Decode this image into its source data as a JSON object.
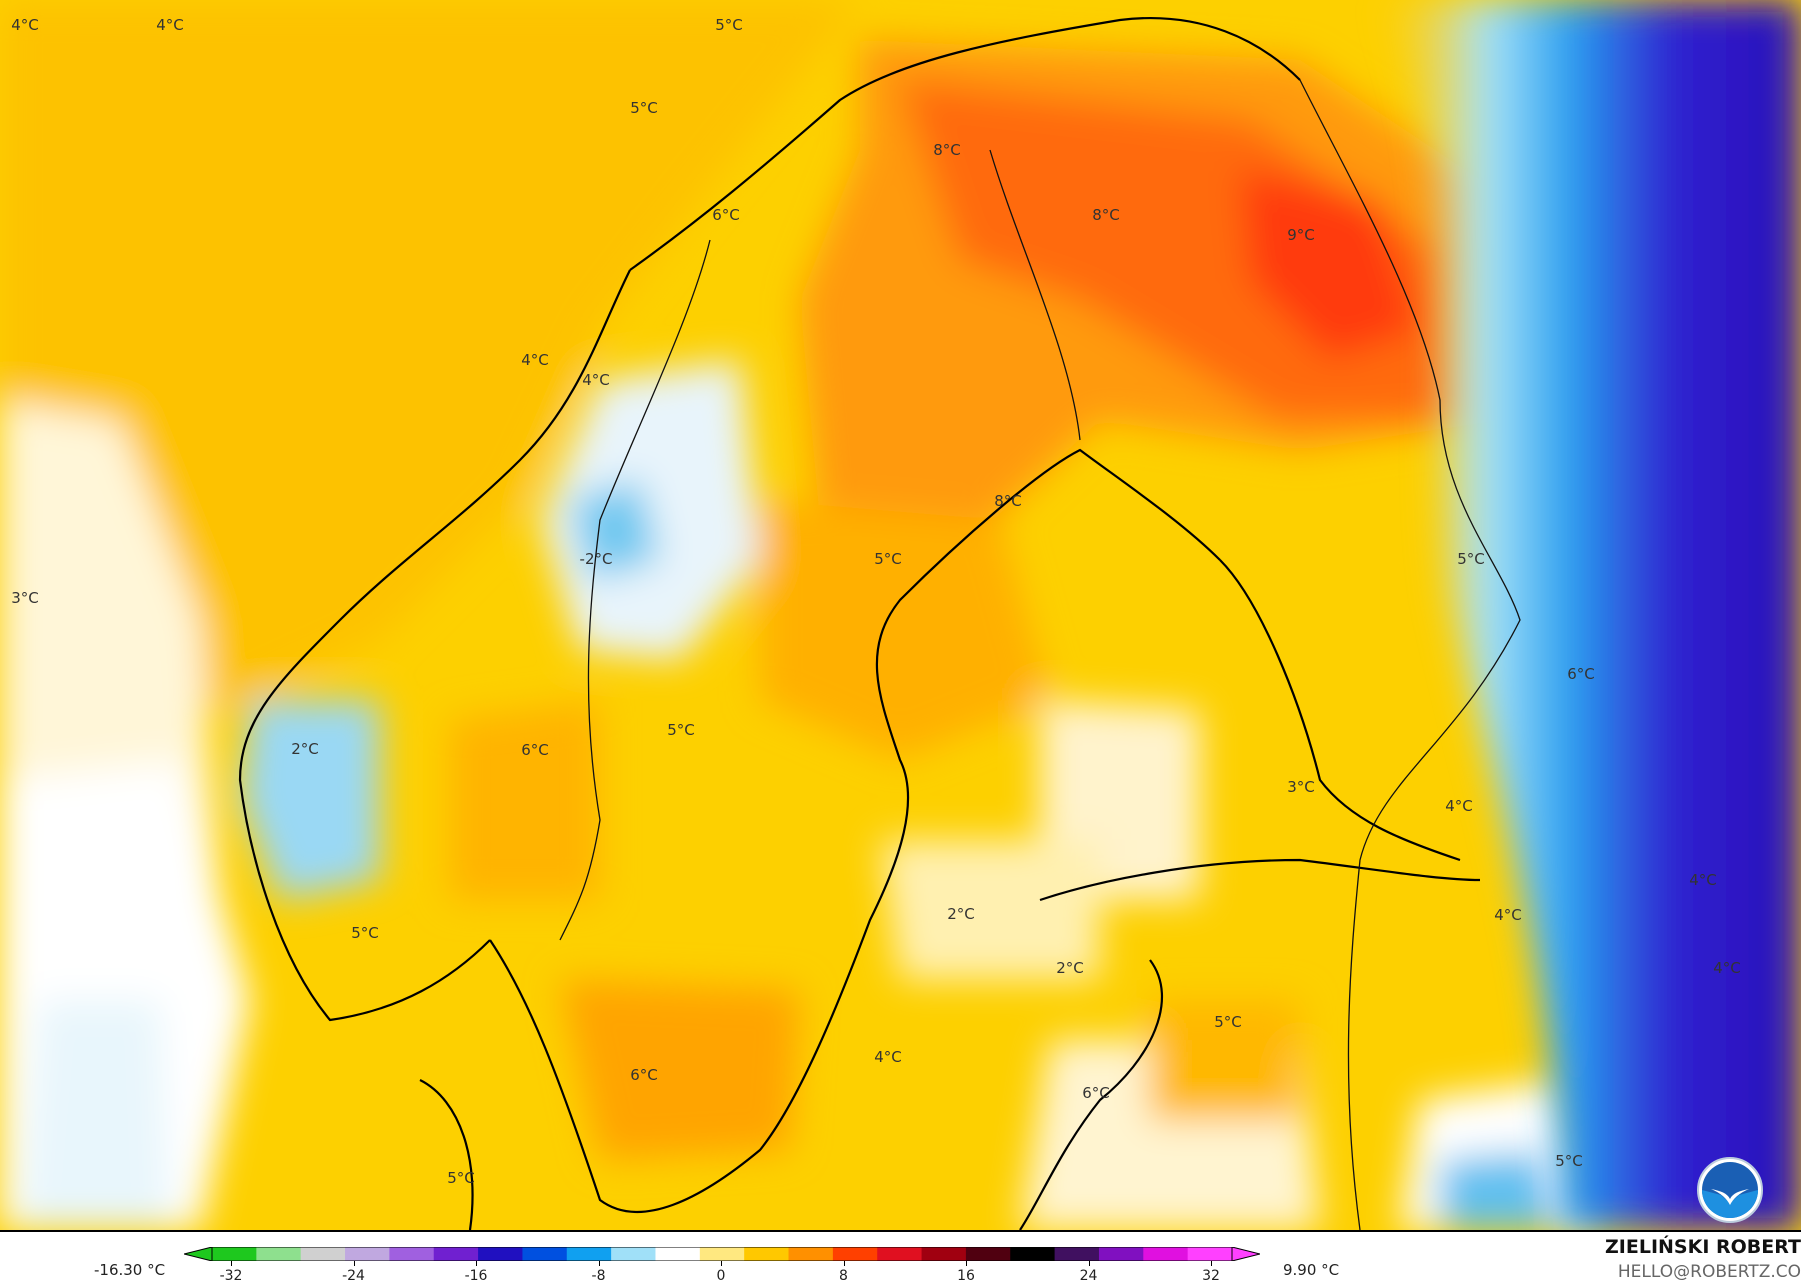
{
  "map": {
    "labels": [
      {
        "text": "4°C"
      },
      {
        "text": "4°C"
      },
      {
        "text": "5°C"
      },
      {
        "text": "5°C"
      },
      {
        "text": "8°C"
      },
      {
        "text": "6°C"
      },
      {
        "text": "8°C"
      },
      {
        "text": "9°C"
      },
      {
        "text": "4°C"
      },
      {
        "text": "4°C"
      },
      {
        "text": "8°C"
      },
      {
        "text": "-2°C"
      },
      {
        "text": "5°C"
      },
      {
        "text": "5°C"
      },
      {
        "text": "3°C"
      },
      {
        "text": "6°C"
      },
      {
        "text": "5°C"
      },
      {
        "text": "2°C"
      },
      {
        "text": "6°C"
      },
      {
        "text": "3°C"
      },
      {
        "text": "4°C"
      },
      {
        "text": "4°C"
      },
      {
        "text": "2°C"
      },
      {
        "text": "4°C"
      },
      {
        "text": "5°C"
      },
      {
        "text": "2°C"
      },
      {
        "text": "4°C"
      },
      {
        "text": "5°C"
      },
      {
        "text": "4°C"
      },
      {
        "text": "6°C"
      },
      {
        "text": "6°C"
      },
      {
        "text": "5°C"
      },
      {
        "text": "5°C"
      }
    ],
    "logo": "NOAA"
  },
  "legend": {
    "min_value": "-16.30 °C",
    "max_value": "9.90 °C",
    "ticks": [
      "-32",
      "-24",
      "-16",
      "-8",
      "0",
      "8",
      "16",
      "24",
      "32"
    ],
    "colors": [
      "#1ec81e",
      "#8ee08e",
      "#d0d0d0",
      "#c0a8e0",
      "#a060e0",
      "#7020d0",
      "#2010c0",
      "#0050e0",
      "#10a0f0",
      "#a0e0f8",
      "#ffffff",
      "#ffe880",
      "#ffc800",
      "#ff9000",
      "#ff4000",
      "#e01020",
      "#a00010",
      "#500010",
      "#000000",
      "#401060",
      "#8010c0",
      "#e010e0",
      "#ff40ff"
    ]
  },
  "credit": {
    "author": "ZIELIŃSKI ROBERT",
    "email": "HELLO@ROBERTZ.CO"
  }
}
